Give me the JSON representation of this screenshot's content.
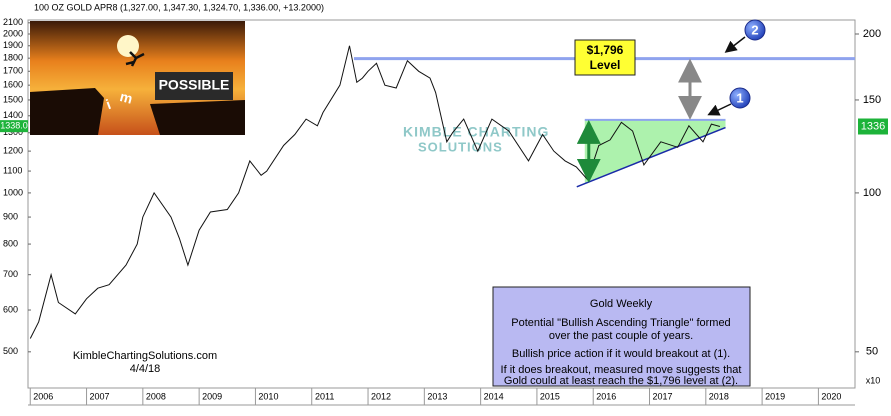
{
  "chart_data": {
    "type": "line",
    "title": "100 OZ GOLD APR8 (1,327.00, 1,347.30, 1,324.70, 1,336.00, +13.2000)",
    "x": [
      2006.0,
      2006.15,
      2006.37,
      2006.5,
      2006.8,
      2007.0,
      2007.2,
      2007.4,
      2007.7,
      2007.9,
      2008.0,
      2008.2,
      2008.5,
      2008.65,
      2008.8,
      2009.0,
      2009.2,
      2009.5,
      2009.7,
      2009.9,
      2010.1,
      2010.2,
      2010.5,
      2010.7,
      2010.9,
      2011.1,
      2011.2,
      2011.5,
      2011.67,
      2011.8,
      2011.9,
      2012.0,
      2012.15,
      2012.3,
      2012.5,
      2012.7,
      2012.9,
      2013.1,
      2013.2,
      2013.4,
      2013.5,
      2013.7,
      2013.95,
      2014.2,
      2014.5,
      2014.85,
      2015.1,
      2015.3,
      2015.5,
      2015.7,
      2015.9,
      2016.1,
      2016.3,
      2016.5,
      2016.7,
      2016.9,
      2017.2,
      2017.5,
      2017.7,
      2017.95,
      2018.1,
      2018.25
    ],
    "values": [
      530,
      570,
      700,
      620,
      590,
      630,
      660,
      670,
      730,
      800,
      900,
      1000,
      900,
      820,
      730,
      850,
      920,
      930,
      1000,
      1150,
      1080,
      1100,
      1230,
      1290,
      1380,
      1340,
      1420,
      1600,
      1900,
      1620,
      1650,
      1700,
      1760,
      1600,
      1580,
      1780,
      1700,
      1650,
      1550,
      1250,
      1300,
      1380,
      1200,
      1380,
      1310,
      1150,
      1290,
      1200,
      1150,
      1120,
      1060,
      1230,
      1260,
      1360,
      1310,
      1130,
      1250,
      1220,
      1340,
      1250,
      1350,
      1336
    ],
    "color": "#111111",
    "log_scale": true,
    "xlim": [
      2005.96,
      2020.65
    ],
    "xticks": [
      2006,
      2007,
      2008,
      2009,
      2010,
      2011,
      2012,
      2013,
      2014,
      2015,
      2016,
      2017,
      2018,
      2019,
      2020
    ],
    "ylim": [
      427,
      2126
    ],
    "yticks": [
      500,
      600,
      700,
      800,
      900,
      1000,
      1100,
      1200,
      1300,
      1400,
      1500,
      1600,
      1700,
      1800,
      1900,
      2000,
      2100
    ],
    "y2lim": [
      42.7,
      212.6
    ],
    "y2ticks": [
      50,
      100,
      150,
      200
    ],
    "y2_label": "x10",
    "price_tags": [
      {
        "value": 1338,
        "label": "1338.0"
      },
      {
        "value": 1336,
        "label": "1336"
      }
    ],
    "level": {
      "value": 1796,
      "label": "$1,796",
      "text": "Level",
      "start": 2011.75,
      "color": "#8fa3ee"
    },
    "triangle": {
      "resistance": 1375,
      "x": [
        2015.85,
        2018.35
      ],
      "support": [
        1045,
        1330
      ],
      "color": "#9ff09f"
    },
    "callouts": [
      "1",
      "2"
    ],
    "watermark": [
      "KIMBLE CHARTING",
      "SOLUTIONS"
    ],
    "note": {
      "heading": "Gold Weekly",
      "lines": [
        "Potential \"Bullish Ascending Triangle\" formed",
        "over the past couple of years.",
        "Bullish price action if it would breakout at (1).",
        "If it does breakout, measured move suggests that",
        "Gold could at least reach the $1,796 level at (2)."
      ]
    },
    "credit": "KimbleChartingSolutions.com",
    "date": "4/4/18",
    "inset": {
      "word": "POSSIBLE",
      "letters": [
        "i",
        "m"
      ]
    }
  }
}
